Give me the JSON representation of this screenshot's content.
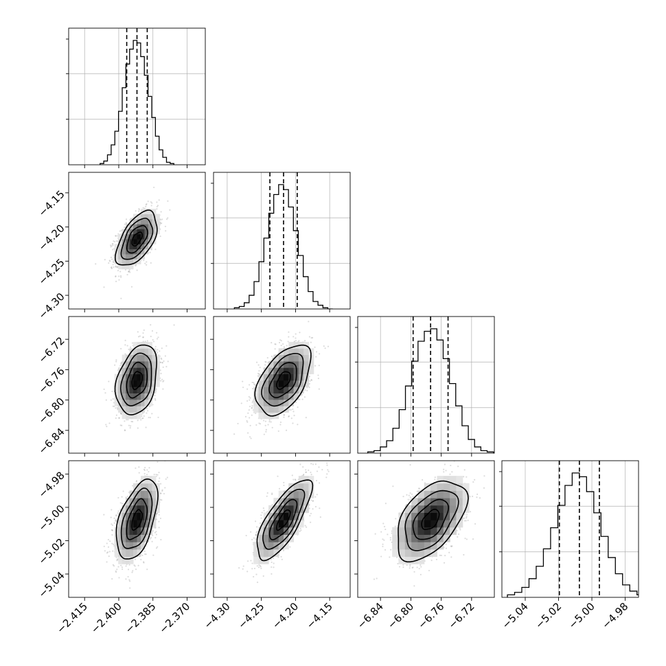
{
  "chart_data": {
    "type": "corner",
    "title": "",
    "parameters": [
      {
        "index": 0,
        "range": [
          -2.422,
          -2.362
        ],
        "ticks": [
          -2.415,
          -2.4,
          -2.385,
          -2.37
        ],
        "tick_labels": [
          "−2.415",
          "−2.400",
          "−2.385",
          "−2.370"
        ],
        "quantiles": [
          -2.3965,
          -2.392,
          -2.3875
        ],
        "histogram_edges_count": 20,
        "histogram": [
          0.01,
          0.03,
          0.08,
          0.16,
          0.27,
          0.43,
          0.62,
          0.81,
          0.93,
          1.0,
          0.98,
          0.87,
          0.72,
          0.55,
          0.38,
          0.23,
          0.12,
          0.06,
          0.02,
          0.01
        ]
      },
      {
        "index": 1,
        "range": [
          -4.32,
          -4.12
        ],
        "ticks": [
          -4.3,
          -4.25,
          -4.2,
          -4.15
        ],
        "tick_labels": [
          "−4.30",
          "−4.25",
          "−4.20",
          "−4.15"
        ],
        "quantiles": [
          -4.2375,
          -4.2175,
          -4.1975
        ],
        "histogram": [
          0.01,
          0.02,
          0.05,
          0.11,
          0.22,
          0.38,
          0.57,
          0.77,
          0.92,
          1.0,
          0.96,
          0.82,
          0.63,
          0.43,
          0.26,
          0.14,
          0.06,
          0.03,
          0.01,
          0.0
        ]
      },
      {
        "index": 2,
        "range": [
          -6.87,
          -6.69
        ],
        "ticks": [
          -6.84,
          -6.8,
          -6.76,
          -6.72
        ],
        "tick_labels": [
          "−6.84",
          "−6.80",
          "−6.76",
          "−6.72"
        ],
        "quantiles": [
          -6.797,
          -6.774,
          -6.751
        ],
        "histogram": [
          0.01,
          0.02,
          0.05,
          0.1,
          0.2,
          0.35,
          0.54,
          0.74,
          0.9,
          0.98,
          1.0,
          0.91,
          0.76,
          0.56,
          0.38,
          0.22,
          0.11,
          0.05,
          0.02,
          0.01
        ]
      },
      {
        "index": 3,
        "range": [
          -5.054,
          -4.972
        ],
        "ticks": [
          -5.04,
          -5.02,
          -5.0,
          -4.98
        ],
        "tick_labels": [
          "−5.04",
          "−5.02",
          "−5.00",
          "−4.98"
        ],
        "quantiles": [
          -5.0195,
          -5.0075,
          -4.9955
        ],
        "histogram": [
          0.02,
          0.04,
          0.08,
          0.15,
          0.25,
          0.39,
          0.56,
          0.74,
          0.9,
          1.0,
          0.97,
          0.85,
          0.68,
          0.49,
          0.32,
          0.19,
          0.1,
          0.05,
          0.02,
          0.01
        ]
      }
    ],
    "correlations": [
      {
        "row": 1,
        "col": 0,
        "rho": 0.55
      },
      {
        "row": 2,
        "col": 0,
        "rho": 0.3
      },
      {
        "row": 2,
        "col": 1,
        "rho": 0.5
      },
      {
        "row": 3,
        "col": 0,
        "rho": 0.5
      },
      {
        "row": 3,
        "col": 1,
        "rho": 0.75
      },
      {
        "row": 3,
        "col": 2,
        "rho": 0.5
      }
    ],
    "contour_levels_sigma": [
      0.5,
      1.0,
      1.5,
      2.0
    ],
    "grid": true,
    "legend": "none",
    "xlabel": "",
    "ylabel": ""
  }
}
